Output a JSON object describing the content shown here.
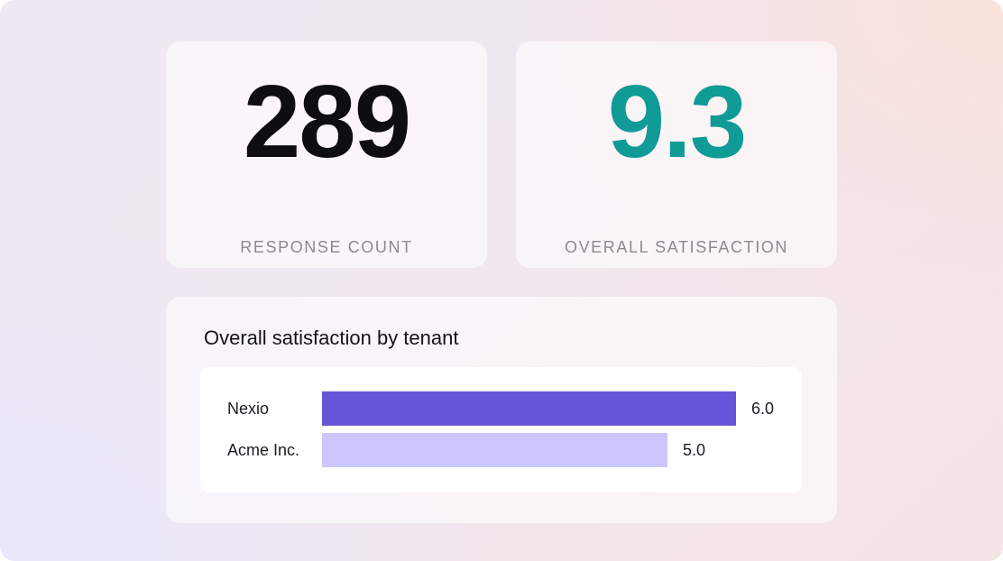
{
  "stats": {
    "responses": {
      "value": "289",
      "label": "RESPONSE COUNT",
      "color": "#0e0e10"
    },
    "satisfaction": {
      "value": "9.3",
      "label": "OVERALL SATISFACTION",
      "color": "#109b96"
    }
  },
  "chart_data": {
    "type": "bar",
    "orientation": "horizontal",
    "title": "Overall satisfaction by tenant",
    "categories": [
      "Nexio",
      "Acme Inc."
    ],
    "values": [
      6.0,
      5.0
    ],
    "value_labels": [
      "6.0",
      "5.0"
    ],
    "colors": [
      "#6556d9",
      "#cbc6fb"
    ],
    "xlim": [
      0,
      6
    ],
    "grid": false
  }
}
